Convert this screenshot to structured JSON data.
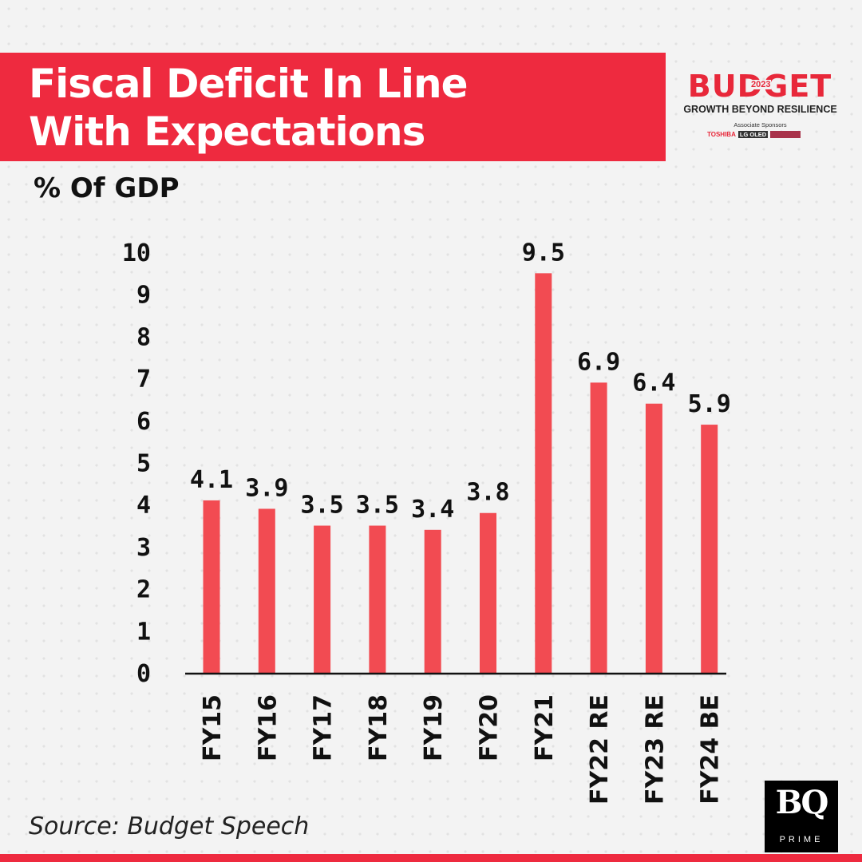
{
  "header": {
    "title_line1": "Fiscal Deficit In Line",
    "title_line2": "With Expectations",
    "subtitle": "% Of GDP"
  },
  "badge": {
    "word": "BUDGET",
    "year": "2023",
    "tagline": "GROWTH BEYOND RESILIENCE",
    "associate": "Associate Sponsors",
    "sponsor1": "TOSHIBA",
    "sponsor2": "LG OLED"
  },
  "source": "Source: Budget Speech",
  "logo": {
    "main": "BQ",
    "sub": "PRIME"
  },
  "colors": {
    "accent": "#ee2a3f",
    "bar": "#f24b52",
    "text": "#111111",
    "background": "#f3f3f3"
  },
  "chart_data": {
    "type": "bar",
    "title": "Fiscal Deficit In Line With Expectations",
    "subtitle": "% Of GDP",
    "categories": [
      "FY15",
      "FY16",
      "FY17",
      "FY18",
      "FY19",
      "FY20",
      "FY21",
      "FY22 RE",
      "FY23 RE",
      "FY24 BE"
    ],
    "values": [
      4.1,
      3.9,
      3.5,
      3.5,
      3.4,
      3.8,
      9.5,
      6.9,
      6.4,
      5.9
    ],
    "value_labels": [
      "4.1",
      "3.9",
      "3.5",
      "3.5",
      "3.4",
      "3.8",
      "9.5",
      "6.9",
      "6.4",
      "5.9"
    ],
    "yticks": [
      0,
      1,
      2,
      3,
      4,
      5,
      6,
      7,
      8,
      9,
      10
    ],
    "ylim": [
      0,
      10
    ],
    "grid": false,
    "legend": "none",
    "source": "Budget Speech"
  }
}
